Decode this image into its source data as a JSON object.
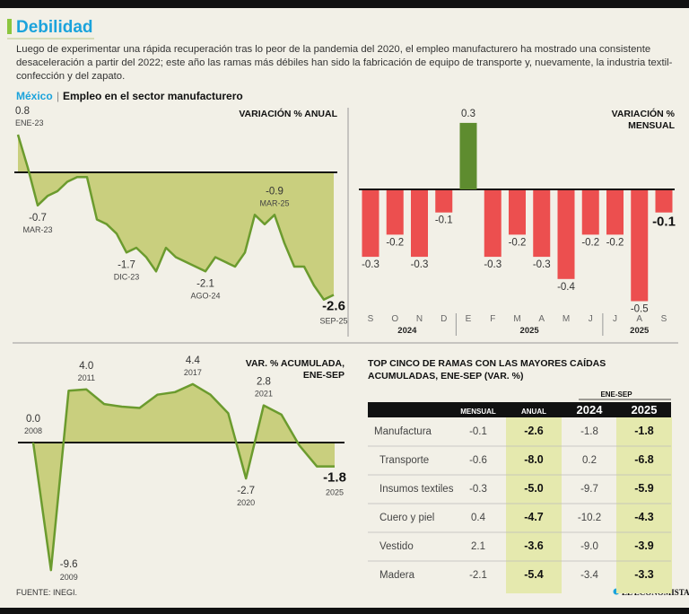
{
  "header": {
    "title": "Debilidad",
    "text": "Luego de experimentar una rápida recuperación tras lo peor de la pandemia del 2020, el empleo manufacturero ha mostrado una consistente desaceleración a partir del 2022; este año las ramas más débiles han sido la fabricación de equipo de transporte y, nuevamente, la industria textil-confección y del zapato."
  },
  "section": {
    "place": "México",
    "title": "Empleo en el sector manufacturero"
  },
  "chart_data": [
    {
      "type": "area",
      "title": "VARIACIÓN % ANUAL",
      "categories": [
        "ENE-23",
        null,
        "MAR-23",
        null,
        null,
        null,
        null,
        null,
        null,
        null,
        null,
        "DIC-23",
        null,
        null,
        null,
        null,
        null,
        null,
        null,
        "AGO-24",
        null,
        null,
        null,
        null,
        null,
        null,
        "MAR-25",
        null,
        null,
        null,
        null,
        null,
        "SEP-25"
      ],
      "values": [
        0.8,
        0.1,
        -0.7,
        -0.5,
        -0.4,
        -0.2,
        -0.1,
        -0.1,
        -1.0,
        -1.1,
        -1.3,
        -1.7,
        -1.6,
        -1.8,
        -2.1,
        -1.6,
        -1.8,
        -1.9,
        -2.0,
        -2.1,
        -1.8,
        -1.9,
        -2.0,
        -1.7,
        -0.9,
        -1.1,
        -0.9,
        -1.5,
        -2.0,
        -2.0,
        -2.4,
        -2.7,
        -2.6
      ],
      "color": "#6b9b2e",
      "fill_color": "#c9cf7e"
    },
    {
      "type": "bar",
      "title": "VARIACIÓN % MENSUAL",
      "categories": [
        "S",
        "O",
        "N",
        "D",
        "E",
        "F",
        "M",
        "A",
        "M",
        "J",
        "J",
        "A",
        "S"
      ],
      "x_groups": [
        {
          "label": "2024",
          "span": 4
        },
        {
          "label": "2025",
          "span": 6
        },
        {
          "label": "2025",
          "span": 3
        }
      ],
      "values": [
        -0.3,
        -0.2,
        -0.3,
        -0.1,
        0.3,
        -0.3,
        -0.2,
        -0.3,
        -0.4,
        -0.2,
        -0.2,
        -0.5,
        -0.1
      ],
      "colors": {
        "positive": "#5e8c2f",
        "negative": "#ec4f4f"
      }
    },
    {
      "type": "area",
      "title": "VAR. % ACUMULADA, ENE-SEP",
      "categories": [
        "2008",
        "2009",
        null,
        "2011",
        null,
        null,
        null,
        null,
        null,
        "2017",
        null,
        null,
        "2020",
        "2021",
        null,
        null,
        null,
        "2025"
      ],
      "values": [
        0.0,
        -9.6,
        3.9,
        4.0,
        2.9,
        2.7,
        2.6,
        3.6,
        3.8,
        4.4,
        3.6,
        2.2,
        -2.7,
        2.8,
        2.1,
        -0.2,
        -1.8,
        -1.8
      ],
      "value_labels": [
        "0.0",
        "-9.6",
        null,
        "4.0",
        null,
        null,
        null,
        null,
        null,
        "4.4",
        null,
        null,
        "-2.7",
        "2.8",
        null,
        null,
        null,
        "-1.8"
      ],
      "color": "#6b9b2e",
      "fill_color": "#c9cf7e"
    }
  ],
  "table": {
    "title": "TOP CINCO DE RAMAS CON LAS MAYORES CAÍDAS ACUMULADAS, ENE-SEP (VAR. %)",
    "group_header": "ENE-SEP",
    "columns": [
      "MENSUAL",
      "ANUAL",
      "2024",
      "2025"
    ],
    "rows": [
      [
        "Manufactura",
        "-0.1",
        "-2.6",
        "-1.8",
        "-1.8"
      ],
      [
        "Transporte",
        "-0.6",
        "-8.0",
        "0.2",
        "-6.8"
      ],
      [
        "Insumos textiles",
        "-0.3",
        "-5.0",
        "-9.7",
        "-5.9"
      ],
      [
        "Cuero y piel",
        "0.4",
        "-4.7",
        "-10.2",
        "-4.3"
      ],
      [
        "Vestido",
        "2.1",
        "-3.6",
        "-9.0",
        "-3.9"
      ],
      [
        "Madera",
        "-2.1",
        "-5.4",
        "-3.4",
        "-3.3"
      ]
    ]
  },
  "footer": {
    "source": "FUENTE: INEGI.",
    "logo": "EL ECONOMISTA"
  }
}
